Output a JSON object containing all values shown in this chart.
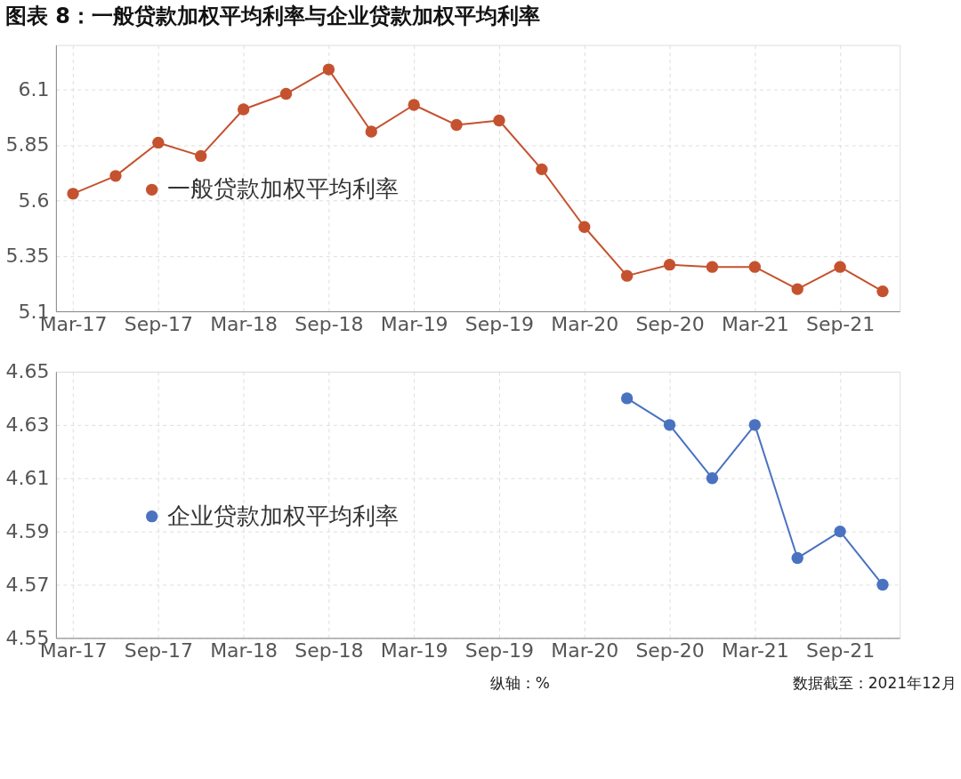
{
  "chart_data": [
    {
      "type": "line",
      "title": "图表 8：一般贷款加权平均利率与企业贷款加权平均利率",
      "categories": [
        "Mar-17",
        null,
        "Sep-17",
        null,
        "Mar-18",
        null,
        "Sep-18",
        null,
        "Mar-19",
        null,
        "Sep-19",
        null,
        "Mar-20",
        null,
        "Sep-20",
        null,
        "Mar-21",
        null,
        "Sep-21",
        null
      ],
      "series": [
        {
          "name": "一般贷款加权平均利率",
          "color": "#c5522f",
          "values": [
            5.63,
            5.71,
            5.86,
            5.8,
            6.01,
            6.08,
            6.19,
            5.91,
            6.03,
            5.94,
            5.96,
            5.74,
            5.48,
            5.26,
            5.31,
            5.3,
            5.3,
            5.2,
            5.3,
            5.19
          ]
        }
      ],
      "ylim": [
        5.1,
        6.3
      ],
      "yticks": [
        5.1,
        5.35,
        5.6,
        5.85,
        6.1
      ],
      "grid": true,
      "legend": "left",
      "marker": "circle",
      "line_style": "solid"
    },
    {
      "type": "line",
      "categories": [
        "Mar-17",
        null,
        "Sep-17",
        null,
        "Mar-18",
        null,
        "Sep-18",
        null,
        "Mar-19",
        null,
        "Sep-19",
        null,
        "Mar-20",
        null,
        "Sep-20",
        null,
        "Mar-21",
        null,
        "Sep-21",
        null
      ],
      "series": [
        {
          "name": "企业贷款加权平均利率",
          "color": "#4a72c0",
          "values": [
            null,
            null,
            null,
            null,
            null,
            null,
            null,
            null,
            null,
            null,
            null,
            null,
            null,
            4.64,
            4.63,
            4.61,
            4.63,
            4.58,
            4.59,
            4.57
          ]
        }
      ],
      "ylim": [
        4.55,
        4.65
      ],
      "yticks": [
        4.55,
        4.57,
        4.59,
        4.61,
        4.63,
        4.65
      ],
      "grid": true,
      "legend": "left",
      "marker": "circle",
      "line_style": "solid",
      "annotations": [
        "纵轴：%",
        "数据截至：2021年12月"
      ]
    }
  ]
}
